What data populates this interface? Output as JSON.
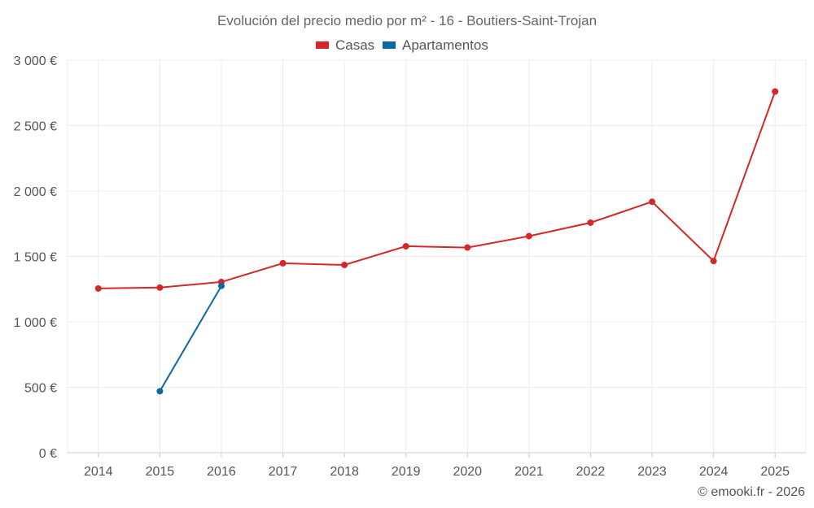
{
  "chart_data": {
    "type": "line",
    "title": "Evolución del precio medio por m² - 16 - Boutiers-Saint-Trojan",
    "x": [
      "2014",
      "2015",
      "2016",
      "2017",
      "2018",
      "2019",
      "2020",
      "2021",
      "2022",
      "2023",
      "2024",
      "2025"
    ],
    "y_ticks": [
      "0 €",
      "500 €",
      "1 000 €",
      "1 500 €",
      "2 000 €",
      "2 500 €",
      "3 000 €"
    ],
    "ylim": [
      0,
      3000
    ],
    "legend_position": "top-center",
    "series": [
      {
        "name": "Casas",
        "color": "#d62728",
        "values": [
          1255,
          1262,
          1305,
          1448,
          1435,
          1578,
          1568,
          1655,
          1758,
          1918,
          1465,
          2760
        ]
      },
      {
        "name": "Apartamentos",
        "color": "#0b6aa2",
        "values": [
          null,
          470,
          1275,
          null,
          null,
          null,
          null,
          null,
          null,
          null,
          null,
          null
        ]
      }
    ]
  },
  "credit": "© emooki.fr - 2026"
}
